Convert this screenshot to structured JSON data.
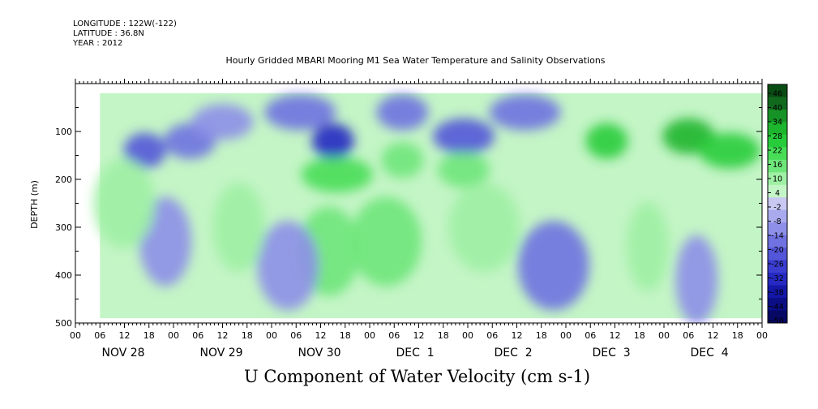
{
  "header": {
    "longitude": "LONGITUDE : 122W(-122)",
    "latitude": "LATITUDE : 36.8N",
    "year": "YEAR : 2012"
  },
  "chart_data": {
    "type": "heatmap",
    "title": "Hourly Gridded MBARI Mooring M1 Sea Water Temperature and Salinity Observations",
    "xlabel": "U Component of Water Velocity (cm s-1)",
    "ylabel": "DEPTH (m)",
    "ylim": [
      500,
      0
    ],
    "yticks": [
      100,
      200,
      300,
      400,
      500
    ],
    "y_tick_labels": [
      "100",
      "200",
      "300",
      "400",
      "500"
    ],
    "x_hour_ticks": [
      "00",
      "06",
      "12",
      "18",
      "00",
      "06",
      "12",
      "18",
      "00",
      "06",
      "12",
      "18",
      "00",
      "06",
      "12",
      "18",
      "00",
      "06",
      "12",
      "18",
      "00",
      "06",
      "12",
      "18",
      "00",
      "06",
      "12",
      "18",
      "00"
    ],
    "x_day_labels": [
      "NOV 28",
      "NOV 29",
      "NOV 30",
      "DEC  1",
      "DEC  2",
      "DEC  3",
      "DEC  4"
    ],
    "x_hour_range": [
      0,
      168
    ],
    "data_hour_range": [
      6,
      168
    ],
    "data_depth_range": [
      20,
      490
    ],
    "colorbar": {
      "labels": [
        "46",
        "40",
        "34",
        "28",
        "22",
        "16",
        "10",
        "4",
        "-2",
        "-8",
        "-14",
        "-20",
        "-26",
        "-32",
        "-38",
        "-44",
        "-50"
      ],
      "min": -50,
      "max": 50,
      "colors": [
        "#0a4d14",
        "#11691e",
        "#179226",
        "#1db52d",
        "#27cc3a",
        "#48dd57",
        "#6fe67a",
        "#9ff0a4",
        "#c4f5c6",
        "#c8c8f2",
        "#a9abee",
        "#8d8fe8",
        "#6f72e0",
        "#5356d8",
        "#3a3dd0",
        "#2529c2",
        "#1417a8",
        "#0c0e86",
        "#060864"
      ]
    },
    "features": [
      {
        "hour": 17,
        "depth": 140,
        "value": -20
      },
      {
        "hour": 28,
        "depth": 120,
        "value": -16
      },
      {
        "hour": 36,
        "depth": 80,
        "value": -10
      },
      {
        "hour": 55,
        "depth": 60,
        "value": -18
      },
      {
        "hour": 63,
        "depth": 120,
        "value": -30
      },
      {
        "hour": 80,
        "depth": 60,
        "value": -14
      },
      {
        "hour": 95,
        "depth": 110,
        "value": -22
      },
      {
        "hour": 110,
        "depth": 60,
        "value": -14
      },
      {
        "hour": 130,
        "depth": 120,
        "value": 26
      },
      {
        "hour": 150,
        "depth": 110,
        "value": 30
      },
      {
        "hour": 160,
        "depth": 140,
        "value": 26
      },
      {
        "hour": 64,
        "depth": 190,
        "value": 20
      },
      {
        "hour": 80,
        "depth": 160,
        "value": 18
      },
      {
        "hour": 95,
        "depth": 180,
        "value": 16
      },
      {
        "hour": 62,
        "depth": 350,
        "value": 14
      },
      {
        "hour": 76,
        "depth": 330,
        "value": 14
      },
      {
        "hour": 140,
        "depth": 340,
        "value": 12
      },
      {
        "hour": 22,
        "depth": 330,
        "value": -12
      },
      {
        "hour": 52,
        "depth": 380,
        "value": -12
      },
      {
        "hour": 117,
        "depth": 380,
        "value": -14
      },
      {
        "hour": 152,
        "depth": 410,
        "value": -10
      },
      {
        "hour": 40,
        "depth": 300,
        "value": 12
      },
      {
        "hour": 12,
        "depth": 250,
        "value": 8
      },
      {
        "hour": 100,
        "depth": 300,
        "value": 8
      }
    ]
  }
}
